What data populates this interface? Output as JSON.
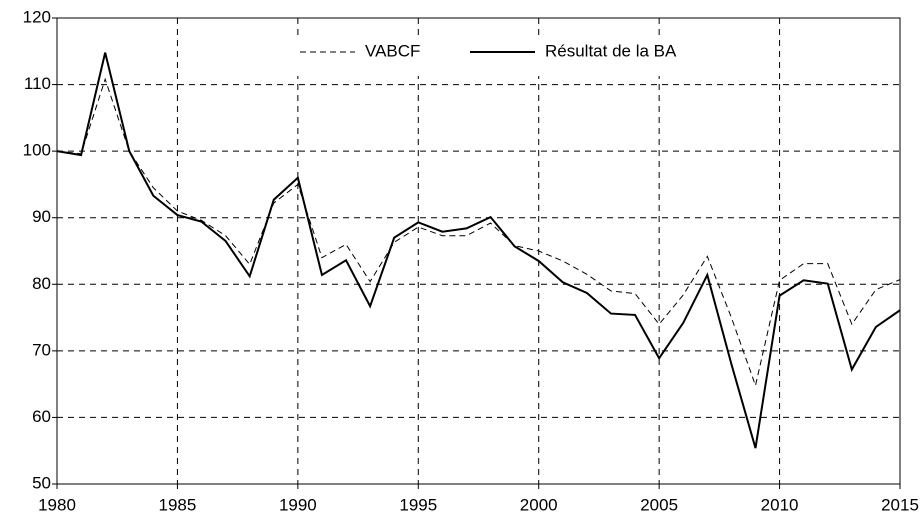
{
  "chart_data": {
    "type": "line",
    "x": [
      1980,
      1981,
      1982,
      1983,
      1984,
      1985,
      1986,
      1987,
      1988,
      1989,
      1990,
      1991,
      1992,
      1993,
      1994,
      1995,
      1996,
      1997,
      1998,
      1999,
      2000,
      2001,
      2002,
      2003,
      2004,
      2005,
      2006,
      2007,
      2008,
      2009,
      2010,
      2011,
      2012,
      2013,
      2014,
      2015
    ],
    "series": [
      {
        "name": "VABCF",
        "color": "#000000",
        "line_style": "dashed",
        "values": [
          100,
          99.6,
          110.8,
          100,
          94.5,
          91,
          89.6,
          87.3,
          83,
          92.2,
          95,
          84,
          86,
          80.4,
          86.3,
          88.6,
          87.3,
          87.3,
          89.2,
          85.8,
          85,
          83.5,
          81.5,
          79,
          78.6,
          74,
          78.4,
          84.2,
          75,
          64.8,
          80.6,
          83.1,
          83.1,
          74,
          79.2,
          80.7
        ]
      },
      {
        "name": "Résultat de la BA",
        "color": "#000000",
        "line_style": "solid",
        "values": [
          100,
          99.4,
          114.8,
          100,
          93.3,
          90.4,
          89.4,
          86.5,
          81.2,
          92.7,
          96,
          81.4,
          83.6,
          76.7,
          87,
          89.3,
          87.9,
          88.4,
          90.1,
          85.7,
          83.5,
          80.3,
          78.7,
          75.6,
          75.4,
          68.9,
          74.2,
          81.4,
          68,
          55.4,
          78.3,
          80.6,
          80.1,
          67.2,
          73.6,
          76.1
        ]
      }
    ],
    "xlim": [
      1980,
      2015
    ],
    "xticks": [
      1980,
      1985,
      1990,
      1995,
      2000,
      2005,
      2010,
      2015
    ],
    "ylim": [
      50,
      120
    ],
    "yticks": [
      50,
      60,
      70,
      80,
      90,
      100,
      110,
      120
    ],
    "grid": true,
    "legend": "top"
  }
}
